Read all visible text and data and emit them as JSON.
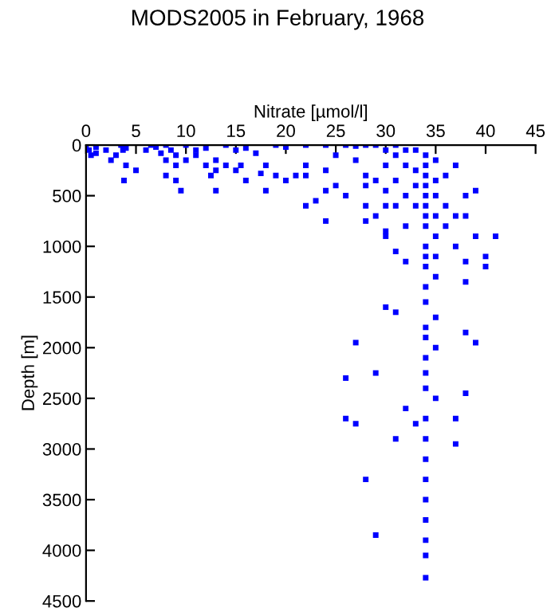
{
  "chart_data": {
    "type": "scatter",
    "title": "MODS2005 in February, 1968",
    "xlabel": "Nitrate [µmol/l]",
    "ylabel": "Depth [m]",
    "xlim": [
      0,
      45
    ],
    "xticks": [
      0,
      5,
      10,
      15,
      20,
      25,
      30,
      35,
      40,
      45
    ],
    "ylim": [
      4500,
      0
    ],
    "yticks": [
      0,
      500,
      1000,
      1500,
      2000,
      2500,
      3000,
      3500,
      4000,
      4500
    ],
    "grid": false,
    "legend": false,
    "marker": "square",
    "series": [
      {
        "color": "#0000ff",
        "x": [
          0,
          0.3,
          0.5,
          1,
          1,
          2,
          2.5,
          3,
          3.5,
          3.7,
          4,
          3.8,
          4,
          5,
          6,
          6.5,
          7,
          7.5,
          8,
          8,
          8.5,
          9,
          8,
          9,
          10,
          9,
          9.5,
          10,
          11,
          11,
          12,
          12,
          12.5,
          13,
          13,
          13,
          14,
          14,
          15,
          15,
          15.5,
          16,
          16,
          17,
          17.5,
          18,
          18,
          19,
          19,
          20,
          20,
          21,
          22,
          22,
          22,
          22,
          23,
          24,
          24,
          24,
          24,
          25,
          25,
          26,
          26,
          27,
          27,
          28,
          28,
          28,
          28,
          29,
          29,
          29,
          30,
          30,
          30,
          30,
          30,
          31,
          31,
          31,
          31,
          32,
          32,
          32,
          32,
          33,
          33,
          33,
          33,
          34,
          34,
          34,
          34,
          34,
          34,
          34,
          34,
          34,
          34,
          34,
          34,
          34,
          34,
          34,
          34,
          34,
          34,
          34,
          34,
          34,
          34,
          34,
          34,
          34,
          34,
          34,
          35,
          35,
          35,
          35,
          35,
          35,
          35,
          35,
          35,
          35,
          36,
          36,
          36,
          37,
          37,
          37,
          38,
          38,
          38,
          38,
          38,
          38,
          39,
          39,
          40,
          40,
          41,
          27,
          26,
          26,
          27,
          28,
          29,
          31,
          32,
          33,
          37,
          39,
          29,
          30,
          31,
          37,
          30,
          31,
          32,
          28
        ],
        "values": [
          0,
          50,
          100,
          20,
          80,
          50,
          150,
          100,
          0,
          50,
          30,
          350,
          200,
          250,
          50,
          0,
          20,
          80,
          0,
          150,
          50,
          100,
          300,
          200,
          150,
          350,
          450,
          0,
          50,
          100,
          30,
          200,
          300,
          150,
          250,
          450,
          0,
          200,
          50,
          250,
          200,
          30,
          350,
          80,
          280,
          200,
          450,
          0,
          300,
          20,
          350,
          300,
          0,
          200,
          300,
          600,
          550,
          0,
          250,
          450,
          750,
          100,
          400,
          0,
          500,
          10,
          150,
          0,
          300,
          600,
          400,
          0,
          350,
          700,
          50,
          450,
          200,
          600,
          850,
          0,
          100,
          350,
          600,
          50,
          200,
          500,
          800,
          50,
          250,
          400,
          600,
          100,
          200,
          300,
          400,
          500,
          600,
          700,
          800,
          1000,
          1100,
          1200,
          1400,
          1550,
          1800,
          1900,
          2100,
          2250,
          2400,
          2700,
          2900,
          3100,
          3300,
          3500,
          3700,
          3900,
          4050,
          4270,
          150,
          350,
          500,
          700,
          900,
          1100,
          1300,
          1700,
          2000,
          2500,
          300,
          600,
          800,
          200,
          700,
          1000,
          500,
          700,
          1150,
          1350,
          1850,
          2450,
          450,
          900,
          1100,
          1200,
          900,
          1950,
          2300,
          2700,
          2750,
          3300,
          3850,
          1650,
          2600,
          2750,
          2700,
          1950,
          2250,
          1600,
          2900,
          2950,
          900,
          1050,
          1150,
          750
        ]
      }
    ]
  }
}
